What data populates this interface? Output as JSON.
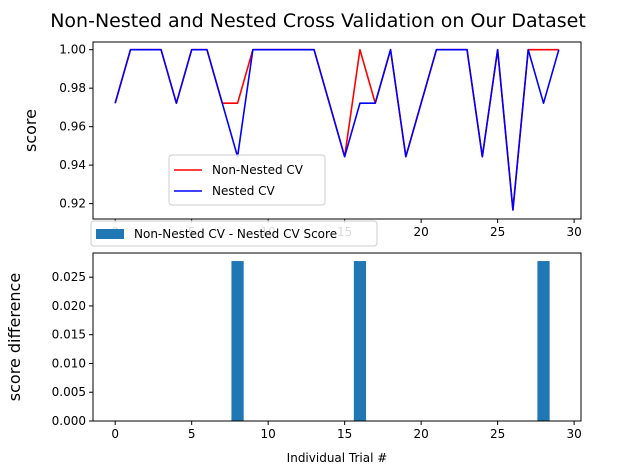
{
  "figure": {
    "title": "Non-Nested and Nested Cross Validation on Our Dataset"
  },
  "chart_data": [
    {
      "type": "line",
      "ylabel": "score",
      "xlabel": "",
      "xlim": [
        -1.45,
        30.45
      ],
      "ylim": [
        0.912,
        1.004
      ],
      "xticks": [
        0,
        5,
        10,
        15,
        20,
        25,
        30
      ],
      "yticks": [
        0.92,
        0.94,
        0.96,
        0.98,
        1.0
      ],
      "ytick_labels": [
        "0.92",
        "0.94",
        "0.96",
        "0.98",
        "1.00"
      ],
      "legend_position": "lower-center",
      "x": [
        0,
        1,
        2,
        3,
        4,
        5,
        6,
        7,
        8,
        9,
        10,
        11,
        12,
        13,
        14,
        15,
        16,
        17,
        18,
        19,
        20,
        21,
        22,
        23,
        24,
        25,
        26,
        27,
        28,
        29
      ],
      "series": [
        {
          "name": "Non-Nested CV",
          "color": "#ff0000",
          "values": [
            0.9722,
            1.0,
            1.0,
            1.0,
            0.9722,
            1.0,
            1.0,
            0.9722,
            0.9722,
            1.0,
            1.0,
            1.0,
            1.0,
            1.0,
            0.9722,
            0.9444,
            1.0,
            0.9722,
            1.0,
            0.9444,
            0.9722,
            1.0,
            1.0,
            1.0,
            0.9444,
            1.0,
            0.9167,
            1.0,
            1.0,
            1.0
          ]
        },
        {
          "name": "Nested CV",
          "color": "#0000ff",
          "values": [
            0.9722,
            1.0,
            1.0,
            1.0,
            0.9722,
            1.0,
            1.0,
            0.9722,
            0.9444,
            1.0,
            1.0,
            1.0,
            1.0,
            1.0,
            0.9722,
            0.9444,
            0.9722,
            0.9722,
            1.0,
            0.9444,
            0.9722,
            1.0,
            1.0,
            1.0,
            0.9444,
            1.0,
            0.9167,
            1.0,
            0.9722,
            1.0
          ]
        }
      ]
    },
    {
      "type": "bar",
      "ylabel": "score difference",
      "xlabel": "Individual Trial #",
      "xlim": [
        -1.45,
        30.45
      ],
      "ylim": [
        0,
        0.0292
      ],
      "xticks": [
        0,
        5,
        10,
        15,
        20,
        25,
        30
      ],
      "yticks": [
        0.0,
        0.005,
        0.01,
        0.015,
        0.02,
        0.025
      ],
      "ytick_labels": [
        "0.000",
        "0.005",
        "0.010",
        "0.015",
        "0.020",
        "0.025"
      ],
      "legend_position": "upper-left",
      "bar_color": "#1f77b4",
      "x": [
        0,
        1,
        2,
        3,
        4,
        5,
        6,
        7,
        8,
        9,
        10,
        11,
        12,
        13,
        14,
        15,
        16,
        17,
        18,
        19,
        20,
        21,
        22,
        23,
        24,
        25,
        26,
        27,
        28,
        29
      ],
      "series": [
        {
          "name": "Non-Nested CV - Nested CV Score",
          "values": [
            0,
            0,
            0,
            0,
            0,
            0,
            0,
            0,
            0.0278,
            0,
            0,
            0,
            0,
            0,
            0,
            0,
            0.0278,
            0,
            0,
            0,
            0,
            0,
            0,
            0,
            0,
            0,
            0,
            0,
            0.0278,
            0
          ]
        }
      ]
    }
  ]
}
